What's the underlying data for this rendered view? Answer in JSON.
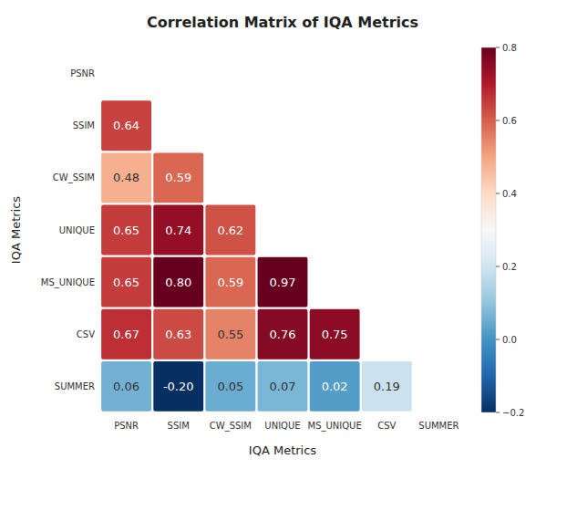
{
  "chart_data": {
    "type": "heatmap",
    "title": "Correlation Matrix of IQA Metrics",
    "x_label": "IQA Metrics",
    "y_label": "IQA Metrics",
    "categories": [
      "PSNR",
      "SSIM",
      "CW_SSIM",
      "UNIQUE",
      "MS_UNIQUE",
      "CSV",
      "SUMMER"
    ],
    "matrix": [
      [
        null,
        null,
        null,
        null,
        null,
        null,
        null
      ],
      [
        0.64,
        null,
        null,
        null,
        null,
        null,
        null
      ],
      [
        0.48,
        0.59,
        null,
        null,
        null,
        null,
        null
      ],
      [
        0.65,
        0.74,
        0.62,
        null,
        null,
        null,
        null
      ],
      [
        0.65,
        0.8,
        0.59,
        0.97,
        null,
        null,
        null
      ],
      [
        0.67,
        0.63,
        0.55,
        0.76,
        0.75,
        null,
        null
      ],
      [
        0.06,
        -0.2,
        0.05,
        0.07,
        0.02,
        0.19,
        null
      ]
    ],
    "value_labels": [
      [
        null,
        null,
        null,
        null,
        null,
        null,
        null
      ],
      [
        "0.64",
        null,
        null,
        null,
        null,
        null,
        null
      ],
      [
        "0.48",
        "0.59",
        null,
        null,
        null,
        null,
        null
      ],
      [
        "0.65",
        "0.74",
        "0.62",
        null,
        null,
        null,
        null
      ],
      [
        "0.65",
        "0.80",
        "0.59",
        "0.97",
        null,
        null,
        null
      ],
      [
        "0.67",
        "0.63",
        "0.55",
        "0.76",
        "0.75",
        null,
        null
      ],
      [
        "0.06",
        "-0.20",
        "0.05",
        "0.07",
        "0.02",
        "0.19",
        null
      ]
    ],
    "data_labels": true,
    "colorbar": {
      "range": [
        -0.2,
        0.8
      ],
      "ticks": [
        {
          "value": -0.2,
          "label": "−0.2"
        },
        {
          "value": 0,
          "label": "0.0"
        },
        0.2,
        0.4,
        0.6,
        0.8
      ]
    }
  }
}
